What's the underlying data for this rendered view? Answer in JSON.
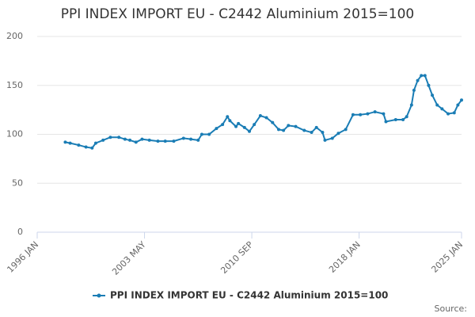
{
  "chart_data": {
    "type": "line",
    "title": "PPI INDEX IMPORT EU - C2442 Aluminium 2015=100",
    "source": "Source:",
    "series": [
      {
        "name": "PPI INDEX IMPORT EU - C2442 Aluminium 2015=100",
        "color": "#1a7db5",
        "x": [
          "1997-12",
          "1998-04",
          "1998-11",
          "1999-05",
          "1999-10",
          "2000-01",
          "2000-07",
          "2001-01",
          "2001-08",
          "2002-01",
          "2002-05",
          "2002-10",
          "2003-03",
          "2003-09",
          "2004-04",
          "2004-10",
          "2005-05",
          "2006-01",
          "2006-07",
          "2007-01",
          "2007-04",
          "2007-10",
          "2008-04",
          "2008-09",
          "2009-01",
          "2009-03",
          "2009-08",
          "2009-10",
          "2010-03",
          "2010-07",
          "2010-11",
          "2011-04",
          "2011-09",
          "2012-02",
          "2012-07",
          "2012-11",
          "2013-03",
          "2013-09",
          "2014-04",
          "2014-10",
          "2015-02",
          "2015-07",
          "2015-09",
          "2016-03",
          "2016-08",
          "2017-02",
          "2017-08",
          "2018-02",
          "2018-08",
          "2019-02",
          "2019-09",
          "2019-11",
          "2020-07",
          "2021-01",
          "2021-04",
          "2021-08",
          "2021-10",
          "2022-01",
          "2022-04",
          "2022-07",
          "2022-10",
          "2023-01",
          "2023-05",
          "2023-09",
          "2024-02",
          "2024-07",
          "2024-10",
          "2025-01"
        ],
        "values": [
          92,
          91,
          89,
          87,
          86,
          91,
          94,
          97,
          97,
          95,
          94,
          92,
          95,
          94,
          93,
          93,
          93,
          96,
          95,
          94,
          100,
          100,
          106,
          110,
          118,
          114,
          108,
          111,
          107,
          103,
          110,
          119,
          117,
          112,
          105,
          104,
          109,
          108,
          104,
          102,
          107,
          102,
          94,
          96,
          101,
          105,
          120,
          120,
          121,
          123,
          121,
          113,
          115,
          115,
          118,
          130,
          145,
          155,
          160,
          160,
          150,
          140,
          130,
          126,
          121,
          122,
          130,
          135
        ]
      }
    ],
    "xlim": [
      "1996-01",
      "2025-01"
    ],
    "xticks": [
      {
        "value": "1996-01",
        "label": "1996 JAN"
      },
      {
        "value": "2003-05",
        "label": "2003 MAY"
      },
      {
        "value": "2010-09",
        "label": "2010 SEP"
      },
      {
        "value": "2018-01",
        "label": "2018 JAN"
      },
      {
        "value": "2025-01",
        "label": "2025 JAN"
      }
    ],
    "ylim": [
      0,
      200
    ],
    "yticks": [
      0,
      50,
      100,
      150,
      200
    ],
    "grid": true
  }
}
